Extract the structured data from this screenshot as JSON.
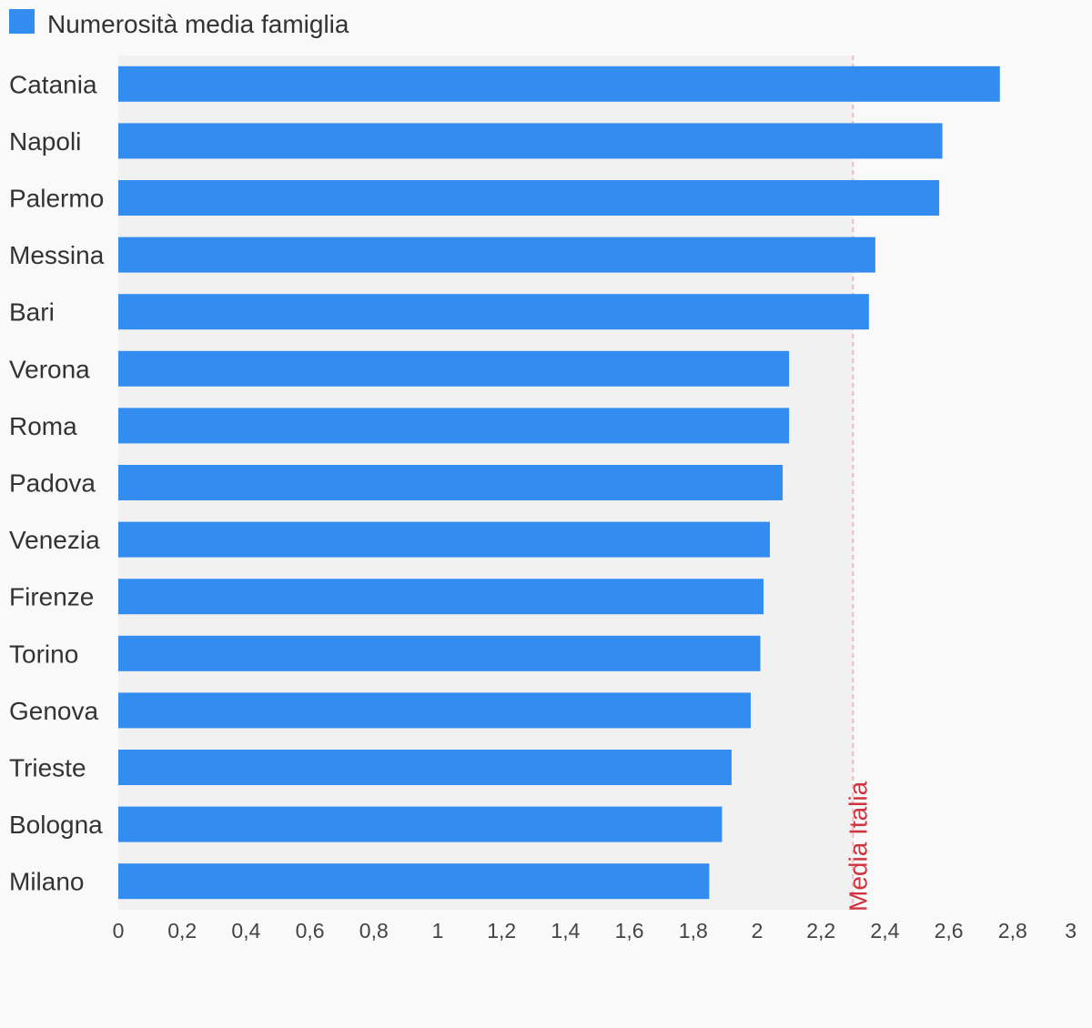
{
  "chart_data": {
    "type": "bar",
    "orientation": "horizontal",
    "legend": {
      "label": "Numerosità media famiglia",
      "color": "#338cf0",
      "position": "top-left"
    },
    "categories": [
      "Catania",
      "Napoli",
      "Palermo",
      "Messina",
      "Bari",
      "Verona",
      "Roma",
      "Padova",
      "Venezia",
      "Firenze",
      "Torino",
      "Genova",
      "Trieste",
      "Bologna",
      "Milano"
    ],
    "series": [
      {
        "name": "Numerosità media famiglia",
        "color": "#338cf0",
        "values": [
          2.76,
          2.58,
          2.57,
          2.37,
          2.35,
          2.1,
          2.1,
          2.08,
          2.04,
          2.02,
          2.01,
          1.98,
          1.92,
          1.89,
          1.85
        ]
      }
    ],
    "xlim": [
      0,
      3
    ],
    "x_ticks": [
      "0",
      "0,2",
      "0,4",
      "0,6",
      "0,8",
      "1",
      "1,2",
      "1,4",
      "1,6",
      "1,8",
      "2",
      "2,2",
      "2,4",
      "2,6",
      "2,8",
      "3"
    ],
    "reference_line": {
      "label": "Media Italia",
      "value": 2.3,
      "color": "#d0343e",
      "style": "dashed"
    },
    "plot_background": "#f1f1f1",
    "grid": false
  }
}
